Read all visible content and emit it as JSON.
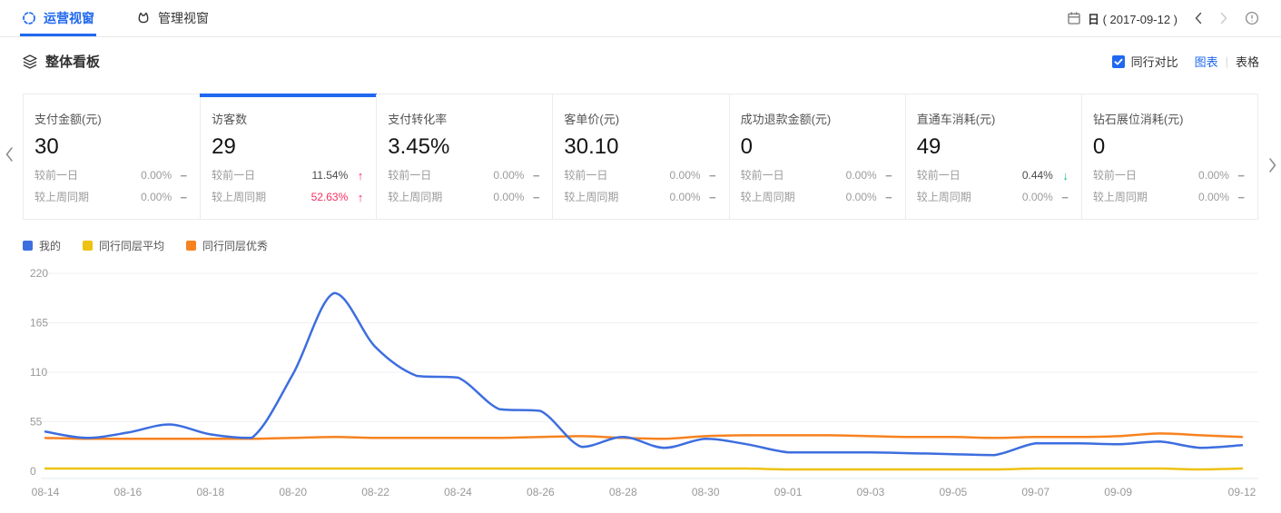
{
  "colors": {
    "accent": "#2068f0",
    "up": "#fb2e5f",
    "down": "#0abf8c",
    "grid": "#f1f1f5",
    "axis_line": "#e5e8ee"
  },
  "nav": {
    "tabs": [
      {
        "label": "运营视窗",
        "active": true
      },
      {
        "label": "管理视窗",
        "active": false
      }
    ],
    "date_mode": "日",
    "date_value": "( 2017-09-12 )"
  },
  "section": {
    "title": "整体看板",
    "compare_label": "同行对比",
    "compare_checked": true,
    "view_chart_label": "图表",
    "view_divider": "|",
    "view_table_label": "表格"
  },
  "cards": [
    {
      "title": "支付金额(元)",
      "value": "30",
      "selected": false,
      "rows": [
        {
          "label": "较前一日",
          "value": "0.00%",
          "arrow": "−",
          "value_tone": "muted",
          "arrow_tone": "flat"
        },
        {
          "label": "较上周同期",
          "value": "0.00%",
          "arrow": "−",
          "value_tone": "muted",
          "arrow_tone": "flat"
        }
      ]
    },
    {
      "title": "访客数",
      "value": "29",
      "selected": true,
      "rows": [
        {
          "label": "较前一日",
          "value": "11.54%",
          "arrow": "↑",
          "value_tone": "default",
          "arrow_tone": "up"
        },
        {
          "label": "较上周同期",
          "value": "52.63%",
          "arrow": "↑",
          "value_tone": "up",
          "arrow_tone": "up"
        }
      ]
    },
    {
      "title": "支付转化率",
      "value": "3.45%",
      "selected": false,
      "rows": [
        {
          "label": "较前一日",
          "value": "0.00%",
          "arrow": "−",
          "value_tone": "muted",
          "arrow_tone": "flat"
        },
        {
          "label": "较上周同期",
          "value": "0.00%",
          "arrow": "−",
          "value_tone": "muted",
          "arrow_tone": "flat"
        }
      ]
    },
    {
      "title": "客单价(元)",
      "value": "30.10",
      "selected": false,
      "rows": [
        {
          "label": "较前一日",
          "value": "0.00%",
          "arrow": "−",
          "value_tone": "muted",
          "arrow_tone": "flat"
        },
        {
          "label": "较上周同期",
          "value": "0.00%",
          "arrow": "−",
          "value_tone": "muted",
          "arrow_tone": "flat"
        }
      ]
    },
    {
      "title": "成功退款金额(元)",
      "value": "0",
      "selected": false,
      "rows": [
        {
          "label": "较前一日",
          "value": "0.00%",
          "arrow": "−",
          "value_tone": "muted",
          "arrow_tone": "flat"
        },
        {
          "label": "较上周同期",
          "value": "0.00%",
          "arrow": "−",
          "value_tone": "muted",
          "arrow_tone": "flat"
        }
      ]
    },
    {
      "title": "直通车消耗(元)",
      "value": "49",
      "selected": false,
      "rows": [
        {
          "label": "较前一日",
          "value": "0.44%",
          "arrow": "↓",
          "value_tone": "default",
          "arrow_tone": "down"
        },
        {
          "label": "较上周同期",
          "value": "0.00%",
          "arrow": "−",
          "value_tone": "muted",
          "arrow_tone": "flat"
        }
      ]
    },
    {
      "title": "钻石展位消耗(元)",
      "value": "0",
      "selected": false,
      "rows": [
        {
          "label": "较前一日",
          "value": "0.00%",
          "arrow": "−",
          "value_tone": "muted",
          "arrow_tone": "flat"
        },
        {
          "label": "较上周同期",
          "value": "0.00%",
          "arrow": "−",
          "value_tone": "muted",
          "arrow_tone": "flat"
        }
      ]
    }
  ],
  "chart_data": {
    "type": "line",
    "title": "",
    "xlabel": "",
    "ylabel": "",
    "ylim": [
      0,
      220
    ],
    "y_ticks": [
      0,
      55,
      110,
      165,
      220
    ],
    "grid": true,
    "legend_position": "top-left",
    "x": [
      "08-14",
      "08-15",
      "08-16",
      "08-17",
      "08-18",
      "08-19",
      "08-20",
      "08-21",
      "08-22",
      "08-23",
      "08-24",
      "08-25",
      "08-26",
      "08-27",
      "08-28",
      "08-29",
      "08-30",
      "08-31",
      "09-01",
      "09-02",
      "09-03",
      "09-04",
      "09-05",
      "09-06",
      "09-07",
      "09-08",
      "09-09",
      "09-10",
      "09-11",
      "09-12"
    ],
    "x_tick_indices": [
      0,
      2,
      4,
      6,
      8,
      10,
      12,
      14,
      16,
      18,
      20,
      22,
      24,
      26,
      29
    ],
    "series": [
      {
        "name": "我的",
        "color": "#3d6edf",
        "values": [
          44,
          37,
          43,
          52,
          41,
          37,
          108,
          198,
          138,
          106,
          104,
          69,
          67,
          27,
          38,
          26,
          36,
          30,
          21,
          21,
          21,
          20,
          19,
          18,
          31,
          31,
          30,
          33,
          26,
          29
        ]
      },
      {
        "name": "同行同层平均",
        "color": "#edc213",
        "values": [
          3,
          3,
          3,
          3,
          3,
          3,
          3,
          3,
          3,
          3,
          3,
          3,
          3,
          3,
          3,
          3,
          3,
          3,
          2,
          2,
          2,
          2,
          2,
          2,
          3,
          3,
          3,
          3,
          2,
          3
        ]
      },
      {
        "name": "同行同层优秀",
        "color": "#f7821f",
        "values": [
          37,
          36,
          36,
          36,
          36,
          36,
          37,
          38,
          37,
          37,
          37,
          37,
          38,
          39,
          37,
          36,
          39,
          40,
          40,
          40,
          39,
          38,
          38,
          37,
          38,
          38,
          39,
          42,
          40,
          38
        ]
      }
    ]
  }
}
